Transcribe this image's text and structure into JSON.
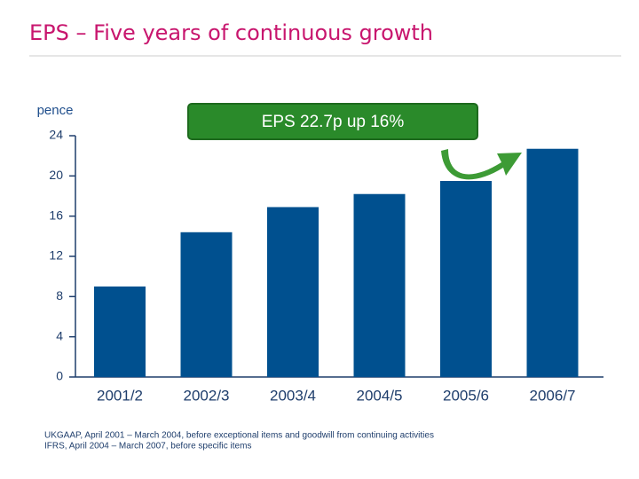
{
  "chart_data": {
    "type": "bar",
    "title": "EPS – Five years of continuous growth",
    "y_label": "pence",
    "annotation": "EPS 22.7p up 16%",
    "categories": [
      "2001/2",
      "2002/3",
      "2003/4",
      "2004/5",
      "2005/6",
      "2006/7"
    ],
    "values": [
      9.0,
      14.4,
      16.9,
      18.2,
      19.5,
      22.7
    ],
    "color": "#00508f",
    "ylim": [
      0,
      24
    ],
    "yticks": [
      0,
      4,
      8,
      12,
      16,
      20,
      24
    ],
    "grid": false,
    "footnotes": [
      "UKGAAP, April 2001 – March 2004, before exceptional items and goodwill from continuing activities",
      "IFRS, April 2004 – March 2007, before specific items"
    ]
  }
}
